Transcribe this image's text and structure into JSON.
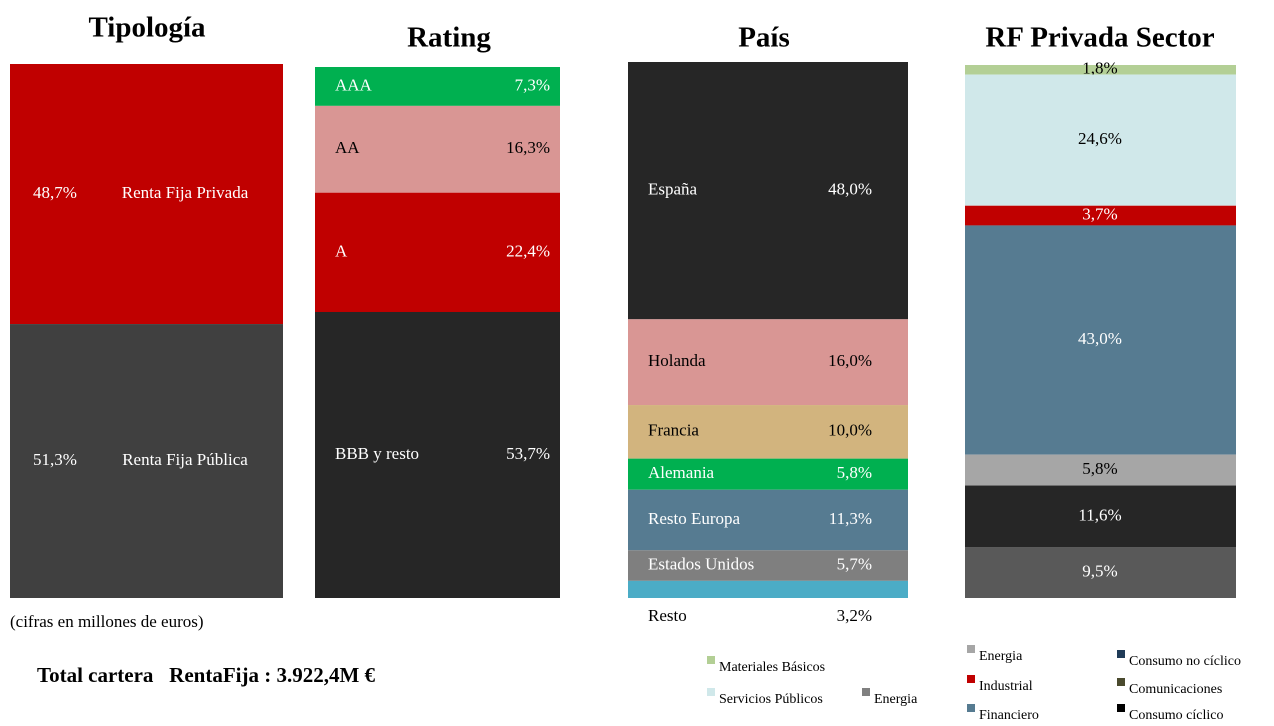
{
  "chart_data": [
    {
      "type": "bar",
      "stacked": true,
      "title": "Tipología",
      "categories": [
        "Renta Fija Privada",
        "Renta Fija Pública"
      ],
      "values": [
        48.7,
        51.3
      ],
      "value_labels": [
        "48,7%",
        "51,3%"
      ],
      "colors": [
        "#c00000",
        "#404040"
      ]
    },
    {
      "type": "bar",
      "stacked": true,
      "title": "Rating",
      "categories": [
        "AAA",
        "AA",
        "A",
        "BBB y resto"
      ],
      "values": [
        7.3,
        16.3,
        22.4,
        53.7
      ],
      "value_labels": [
        "7,3%",
        "16,3%",
        "22,4%",
        "53,7%"
      ],
      "colors": [
        "#00b050",
        "#d99694",
        "#c00000",
        "#262626"
      ]
    },
    {
      "type": "bar",
      "stacked": true,
      "title": "País",
      "categories": [
        "España",
        "Holanda",
        "Francia",
        "Alemania",
        "Resto Europa",
        "Estados Unidos",
        "Resto"
      ],
      "values": [
        48.0,
        16.0,
        10.0,
        5.8,
        11.3,
        5.7,
        3.2
      ],
      "value_labels": [
        "48,0%",
        "16,0%",
        "10,0%",
        "5,8%",
        "11,3%",
        "5,7%",
        "3,2%"
      ],
      "colors": [
        "#262626",
        "#d99694",
        "#d2b47e",
        "#00b050",
        "#567b91",
        "#7f7f7f",
        "#4bacc6"
      ]
    },
    {
      "type": "bar",
      "stacked": true,
      "title": "RF Privada Sector",
      "values": [
        1.8,
        24.6,
        3.7,
        43.0,
        5.8,
        11.6,
        9.5
      ],
      "value_labels": [
        "1,8%",
        "24,6%",
        "3,7%",
        "43,0%",
        "5,8%",
        "11,6%",
        "9,5%"
      ],
      "colors": [
        "#b3cf95",
        "#d0e8ea",
        "#c00000",
        "#567b91",
        "#a6a6a6",
        "#262626",
        "#595959"
      ],
      "legend": [
        {
          "name": "Materiales Básicos",
          "color": "#b3cf95"
        },
        {
          "name": "Servicios Públicos",
          "color": "#d0e8ea"
        },
        {
          "name": "Energia",
          "color": "#808080"
        },
        {
          "name": "Energia",
          "color": "#a6a6a6"
        },
        {
          "name": "Industrial",
          "color": "#c00000"
        },
        {
          "name": "Financiero",
          "color": "#567b91"
        },
        {
          "name": "Consumo no cíclico",
          "color": "#1f3b57"
        },
        {
          "name": "Comunicaciones",
          "color": "#4a4a2e"
        },
        {
          "name": "Consumo cíclico",
          "color": "#000000"
        }
      ]
    }
  ],
  "notes": {
    "footnote": "(cifras en millones de euros)",
    "total": "Total cartera   RentaFija : 3.922,4M €"
  }
}
